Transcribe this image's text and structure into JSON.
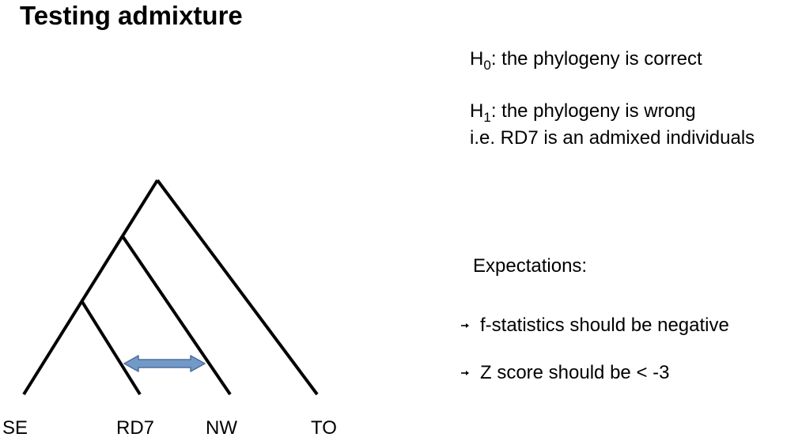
{
  "slide": {
    "title": "Testing admixture"
  },
  "hypotheses": {
    "h0": {
      "letter": "H",
      "subscript": "0",
      "text": ": the phylogeny is correct"
    },
    "h1": {
      "letter": "H",
      "subscript": "1",
      "text": ": the phylogeny is wrong",
      "detail": "i.e. RD7 is an admixed individuals"
    }
  },
  "expectations": {
    "heading": "Expectations:",
    "items": [
      "f-statistics should be negative",
      "Z score should be < -3"
    ]
  },
  "tree": {
    "leaves": [
      "SE",
      "RD7",
      "NW",
      "TO"
    ],
    "line_color": "#000000",
    "admixture_arrow_fill": "#7399c6",
    "admixture_arrow_stroke": "#4a6f9e"
  }
}
